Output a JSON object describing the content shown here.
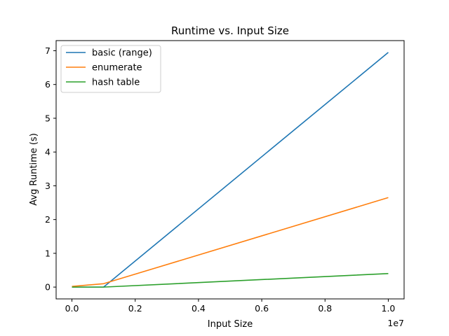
{
  "chart_data": {
    "type": "line",
    "title": "Runtime vs. Input Size",
    "xlabel": "Input Size",
    "ylabel": "Avg Runtime (s)",
    "x_offset_label": "1e7",
    "xlim": [
      -500000,
      10500000
    ],
    "ylim": [
      -0.35,
      7.3
    ],
    "x_ticks": [
      0,
      2000000,
      4000000,
      6000000,
      8000000,
      10000000
    ],
    "x_tick_labels": [
      "0.0",
      "0.2",
      "0.4",
      "0.6",
      "0.8",
      "1.0"
    ],
    "y_ticks": [
      0,
      1,
      2,
      3,
      4,
      5,
      6,
      7
    ],
    "y_tick_labels": [
      "0",
      "1",
      "2",
      "3",
      "4",
      "5",
      "6",
      "7"
    ],
    "grid": false,
    "legend_position": "top-left",
    "series": [
      {
        "name": "basic (range)",
        "color": "#1f77b4",
        "x": [
          0,
          1000000,
          10000000
        ],
        "y": [
          0.0,
          0.0,
          6.95
        ]
      },
      {
        "name": "enumerate",
        "color": "#ff7f0e",
        "x": [
          0,
          1000000,
          10000000
        ],
        "y": [
          0.02,
          0.1,
          2.65
        ]
      },
      {
        "name": "hash table",
        "color": "#2ca02c",
        "x": [
          0,
          1000000,
          10000000
        ],
        "y": [
          0.0,
          0.0,
          0.4
        ]
      }
    ]
  }
}
